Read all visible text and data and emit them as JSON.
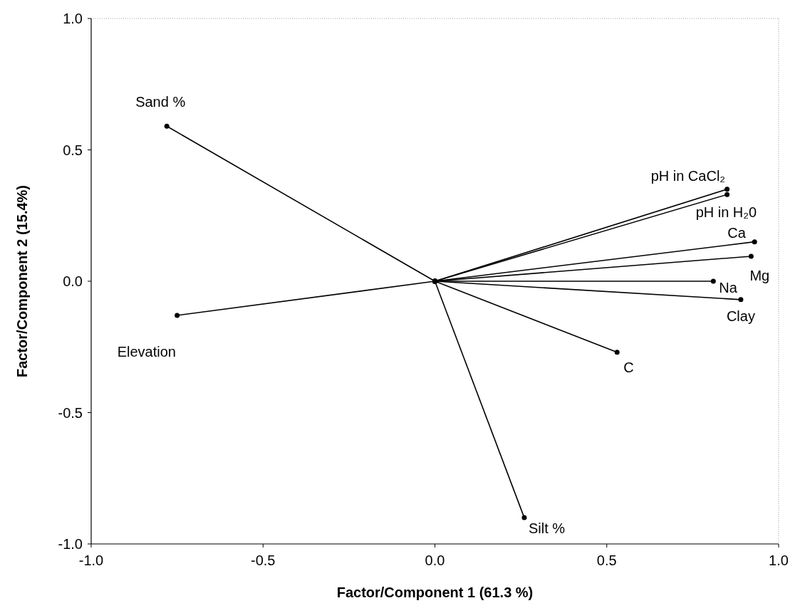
{
  "chart_data": {
    "type": "line",
    "xlabel": "Factor/Component 1 (61.3 %)",
    "ylabel": "Factor/Component 2 (15.4%)",
    "xlim": [
      -1,
      1
    ],
    "ylim": [
      -1,
      1
    ],
    "xticks": [
      {
        "value": -1,
        "label": "-1.0"
      },
      {
        "value": -0.5,
        "label": "-0.5"
      },
      {
        "value": 0,
        "label": "0.0"
      },
      {
        "value": 0.5,
        "label": "0.5"
      },
      {
        "value": 1,
        "label": "1.0"
      }
    ],
    "yticks": [
      {
        "value": -1,
        "label": "-1.0"
      },
      {
        "value": -0.5,
        "label": "-0.5"
      },
      {
        "value": 0,
        "label": "0.0"
      },
      {
        "value": 0.5,
        "label": "0.5"
      },
      {
        "value": 1,
        "label": "1.0"
      }
    ],
    "grid": false,
    "marker": "circle",
    "line_style": "solid",
    "series": [
      {
        "color": "#000000",
        "x": [
          0,
          -0.78
        ],
        "values": [
          0,
          0.59
        ]
      },
      {
        "color": "#000000",
        "x": [
          0,
          -0.75
        ],
        "values": [
          0,
          -0.13
        ]
      },
      {
        "color": "#000000",
        "x": [
          0,
          0.85
        ],
        "values": [
          0,
          0.35
        ]
      },
      {
        "color": "#000000",
        "x": [
          0,
          0.85
        ],
        "values": [
          0,
          0.33
        ]
      },
      {
        "color": "#000000",
        "x": [
          0,
          0.93
        ],
        "values": [
          0,
          0.15
        ]
      },
      {
        "color": "#000000",
        "x": [
          0,
          0.92
        ],
        "values": [
          0,
          0.095
        ]
      },
      {
        "color": "#000000",
        "x": [
          0,
          0.81
        ],
        "values": [
          0,
          0
        ]
      },
      {
        "color": "#000000",
        "x": [
          0,
          0.89
        ],
        "values": [
          0,
          -0.07
        ]
      },
      {
        "color": "#000000",
        "x": [
          0,
          0.53
        ],
        "values": [
          0,
          -0.27
        ]
      },
      {
        "color": "#000000",
        "x": [
          0,
          0.26
        ],
        "values": [
          0,
          -0.9
        ]
      }
    ],
    "annotations": [
      {
        "text": "Sand %",
        "x": -0.78,
        "y": 0.59
      },
      {
        "text": "Elevation",
        "x": -0.75,
        "y": -0.13
      },
      {
        "text": "pH in CaCl₂",
        "x": 0.85,
        "y": 0.35
      },
      {
        "text": "pH in H₂0",
        "x": 0.85,
        "y": 0.33
      },
      {
        "text": "Ca",
        "x": 0.93,
        "y": 0.15
      },
      {
        "text": "Mg",
        "x": 0.92,
        "y": 0.095
      },
      {
        "text": "Na",
        "x": 0.81,
        "y": 0
      },
      {
        "text": "Clay",
        "x": 0.89,
        "y": -0.07
      },
      {
        "text": "C",
        "x": 0.53,
        "y": -0.27
      },
      {
        "text": "Silt %",
        "x": 0.26,
        "y": -0.9
      }
    ]
  }
}
